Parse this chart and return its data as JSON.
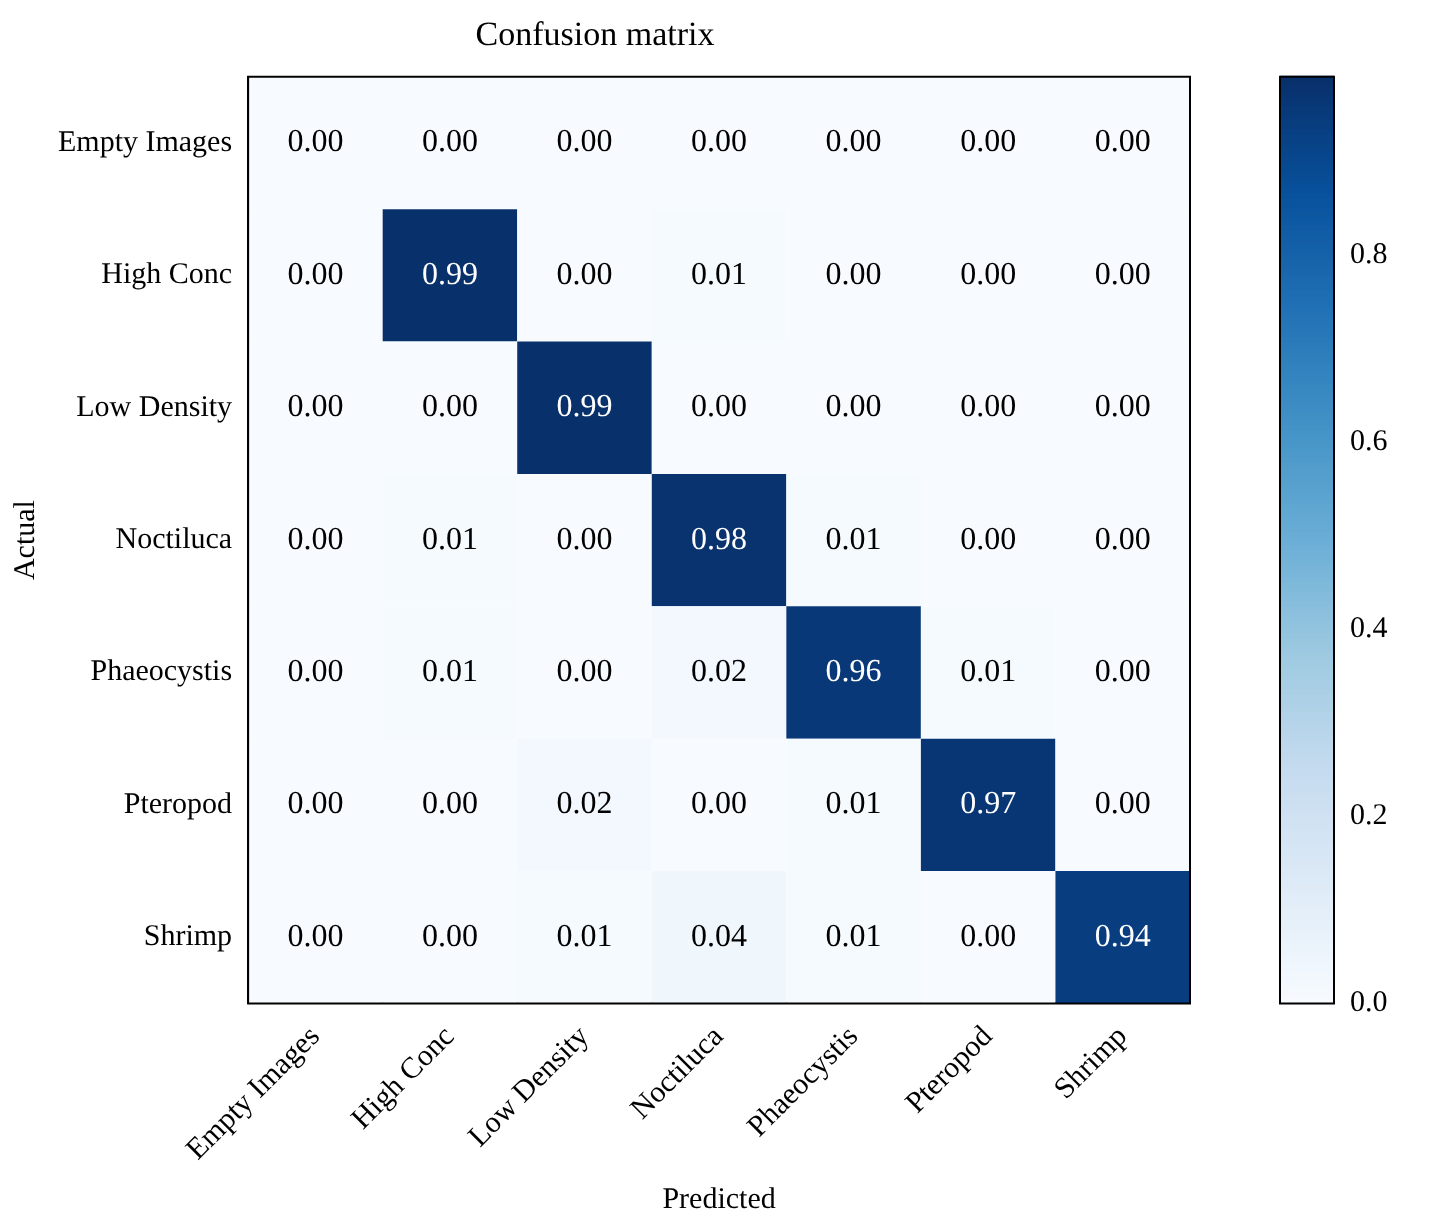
{
  "chart_data": {
    "type": "heatmap",
    "title": "Confusion matrix",
    "xlabel": "Predicted",
    "ylabel": "Actual",
    "categories": [
      "Empty Images",
      "High Conc",
      "Low Density",
      "Noctiluca",
      "Phaeocystis",
      "Pteropod",
      "Shrimp"
    ],
    "y_categories": [
      "Empty Images",
      "High Conc",
      "Low Density",
      "Noctiluca",
      "Phaeocystis",
      "Pteropod",
      "Shrimp"
    ],
    "cells": [
      [
        0,
        0,
        0,
        0,
        0,
        0,
        0
      ],
      [
        0,
        0.99,
        0,
        0.01,
        0,
        0,
        0
      ],
      [
        0,
        0,
        0.99,
        0,
        0,
        0,
        0
      ],
      [
        0,
        0.01,
        0,
        0.98,
        0.01,
        0,
        0
      ],
      [
        0,
        0.01,
        0,
        0.02,
        0.96,
        0.01,
        0
      ],
      [
        0,
        0,
        0.02,
        0,
        0.01,
        0.97,
        0
      ],
      [
        0,
        0,
        0.01,
        0.04,
        0.01,
        0,
        0.94
      ]
    ],
    "cell_labels": [
      [
        "0.00",
        "0.00",
        "0.00",
        "0.00",
        "0.00",
        "0.00",
        "0.00"
      ],
      [
        "0.00",
        "0.99",
        "0.00",
        "0.01",
        "0.00",
        "0.00",
        "0.00"
      ],
      [
        "0.00",
        "0.00",
        "0.99",
        "0.00",
        "0.00",
        "0.00",
        "0.00"
      ],
      [
        "0.00",
        "0.01",
        "0.00",
        "0.98",
        "0.01",
        "0.00",
        "0.00"
      ],
      [
        "0.00",
        "0.01",
        "0.00",
        "0.02",
        "0.96",
        "0.01",
        "0.00"
      ],
      [
        "0.00",
        "0.00",
        "0.02",
        "0.00",
        "0.01",
        "0.97",
        "0.00"
      ],
      [
        "0.00",
        "0.00",
        "0.01",
        "0.04",
        "0.01",
        "0.00",
        "0.94"
      ]
    ],
    "clim": [
      0,
      0.99
    ],
    "cticks": [
      {
        "value": 0,
        "label": "0.0"
      },
      0.2,
      0.4,
      0.6,
      0.8
    ]
  }
}
